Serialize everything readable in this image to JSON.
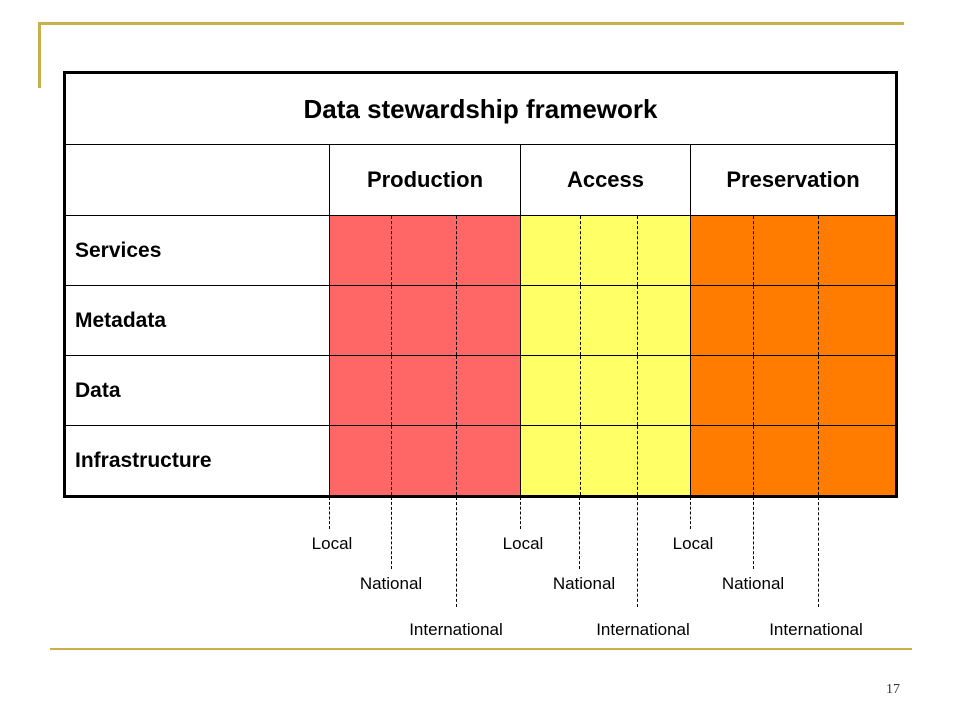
{
  "slide": {
    "title": "Data stewardship framework",
    "columns": [
      "Production",
      "Access",
      "Preservation"
    ],
    "rows": [
      "Services",
      "Metadata",
      "Data",
      "Infrastructure"
    ],
    "levels": {
      "local": "Local",
      "national": "National",
      "international": "International"
    },
    "page_number": "17",
    "colors": {
      "production": "#ff6666",
      "access": "#ffff66",
      "preservation": "#ff7c00",
      "decoration": "#c8b04a"
    }
  }
}
